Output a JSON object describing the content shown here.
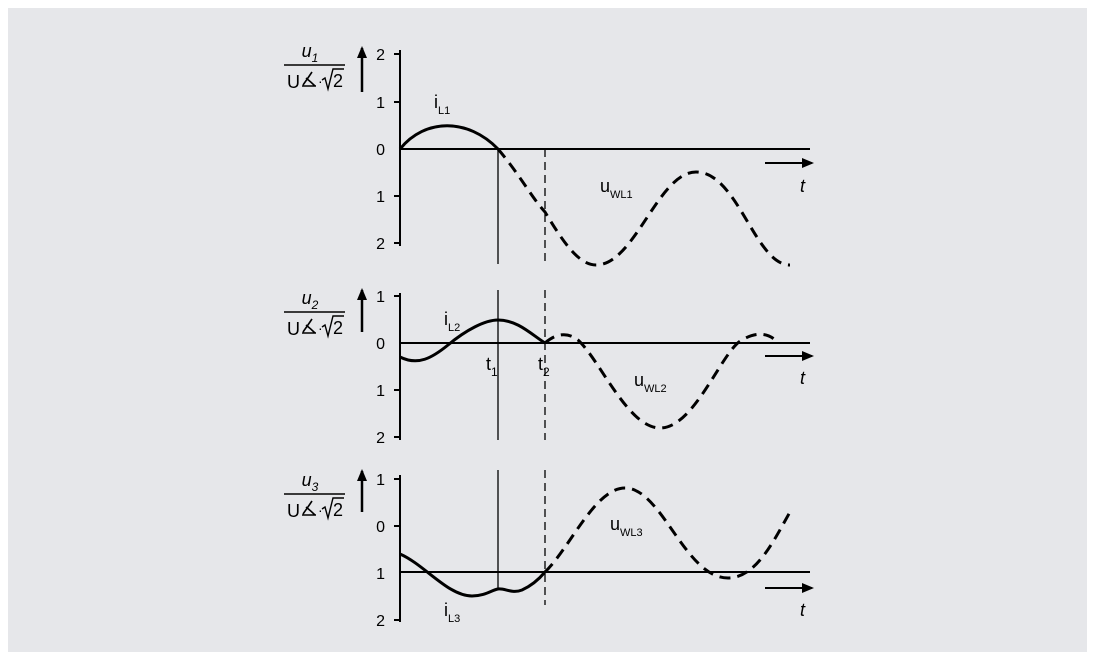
{
  "colors": {
    "background": "#e6e7ea",
    "ink": "#000000"
  },
  "panels": [
    {
      "ylabel": {
        "var": "u",
        "sub": "1",
        "den": "U",
        "sqrt": "2"
      },
      "ticks": [
        "2",
        "1",
        "0",
        "1",
        "2"
      ],
      "curve_solid_label": {
        "main": "i",
        "sub": "L1"
      },
      "curve_dashed_label": {
        "main": "u",
        "sub": "WL1"
      },
      "axis_label": "t"
    },
    {
      "ylabel": {
        "var": "u",
        "sub": "2",
        "den": "U",
        "sqrt": "2"
      },
      "ticks": [
        "1",
        "0",
        "1",
        "2"
      ],
      "curve_solid_label": {
        "main": "i",
        "sub": "L2"
      },
      "curve_dashed_label": {
        "main": "u",
        "sub": "WL2"
      },
      "axis_label": "t",
      "time_markers": [
        {
          "main": "t",
          "sub": "1"
        },
        {
          "main": "t",
          "sub": "2"
        }
      ]
    },
    {
      "ylabel": {
        "var": "u",
        "sub": "3",
        "den": "U",
        "sqrt": "2"
      },
      "ticks": [
        "1",
        "0",
        "1",
        "2"
      ],
      "curve_solid_label": {
        "main": "i",
        "sub": "L3"
      },
      "curve_dashed_label": {
        "main": "u",
        "sub": "WL3"
      },
      "axis_label": "t"
    }
  ]
}
